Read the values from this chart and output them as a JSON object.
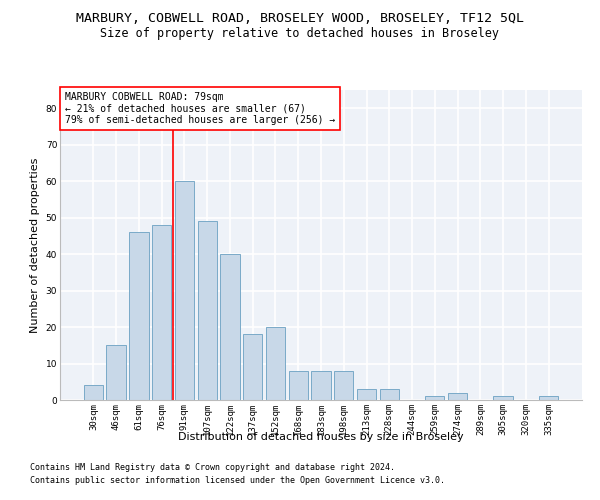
{
  "title": "MARBURY, COBWELL ROAD, BROSELEY WOOD, BROSELEY, TF12 5QL",
  "subtitle": "Size of property relative to detached houses in Broseley",
  "xlabel": "Distribution of detached houses by size in Broseley",
  "ylabel": "Number of detached properties",
  "bar_color": "#c8d8e8",
  "bar_edge_color": "#7aaac8",
  "categories": [
    "30sqm",
    "46sqm",
    "61sqm",
    "76sqm",
    "91sqm",
    "107sqm",
    "122sqm",
    "137sqm",
    "152sqm",
    "168sqm",
    "183sqm",
    "198sqm",
    "213sqm",
    "228sqm",
    "244sqm",
    "259sqm",
    "274sqm",
    "289sqm",
    "305sqm",
    "320sqm",
    "335sqm"
  ],
  "values": [
    4,
    15,
    46,
    48,
    60,
    49,
    40,
    18,
    20,
    8,
    8,
    8,
    3,
    3,
    0,
    1,
    2,
    0,
    1,
    0,
    1
  ],
  "ylim": [
    0,
    85
  ],
  "yticks": [
    0,
    10,
    20,
    30,
    40,
    50,
    60,
    70,
    80
  ],
  "ref_line_color": "red",
  "ref_line_x": 3.5,
  "annotation_text": "MARBURY COBWELL ROAD: 79sqm\n← 21% of detached houses are smaller (67)\n79% of semi-detached houses are larger (256) →",
  "annotation_box_facecolor": "white",
  "annotation_box_edgecolor": "red",
  "background_color": "#eef2f8",
  "grid_color": "#ffffff",
  "title_fontsize": 9.5,
  "subtitle_fontsize": 8.5,
  "ylabel_fontsize": 8,
  "xlabel_fontsize": 8,
  "tick_fontsize": 6.5,
  "annotation_fontsize": 7,
  "footer_fontsize": 6,
  "footer_line1": "Contains HM Land Registry data © Crown copyright and database right 2024.",
  "footer_line2": "Contains public sector information licensed under the Open Government Licence v3.0."
}
